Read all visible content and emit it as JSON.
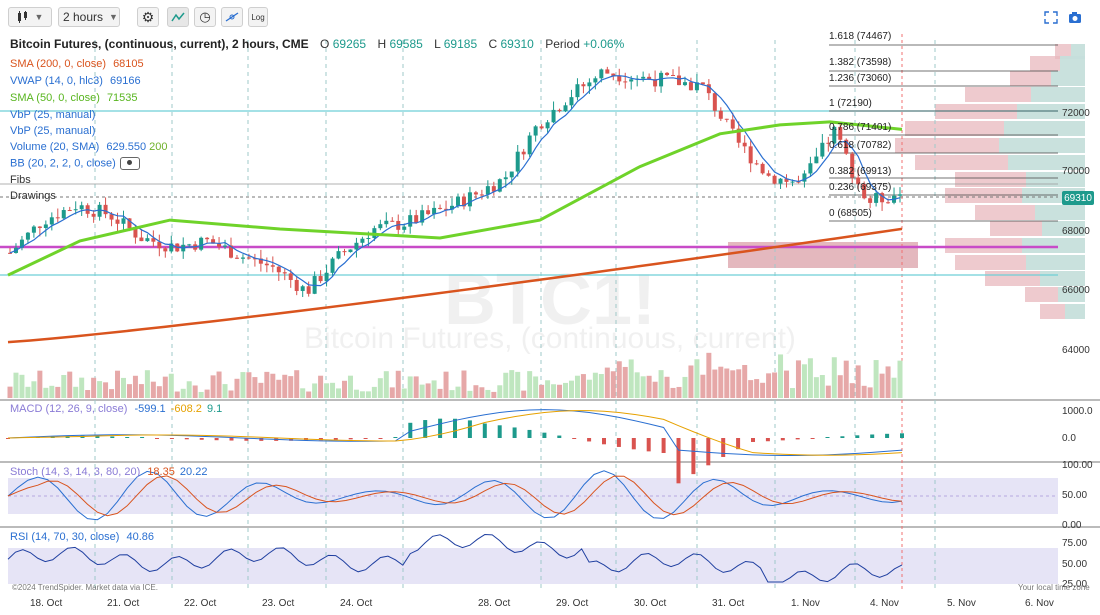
{
  "toolbar": {
    "chart_style_icon": "candle-icon",
    "timeframe": "2 hours",
    "settings_icon": "gear-icon",
    "indicator_icon": "indicator-icon",
    "replay_icon": "clock-icon",
    "drawing_icon": "drawing-icon",
    "log_label": "Log",
    "fullscreen_icon": "fullscreen-icon",
    "snapshot_icon": "camera-icon"
  },
  "header": {
    "title": "Bitcoin Futures, (continuous, current), 2 hours, CME",
    "o_label": "O",
    "o": "69265",
    "h_label": "H",
    "h": "69585",
    "l_label": "L",
    "l": "69185",
    "c_label": "C",
    "c": "69310",
    "period_label": "Period",
    "period": "+0.06%"
  },
  "legends": {
    "sma200": {
      "label": "SMA (200, 0, close)",
      "value": "68105",
      "color": "#d9541e"
    },
    "vwap": {
      "label": "VWAP (14, 0, hlc3)",
      "value": "69166",
      "color": "#2a6fd1"
    },
    "sma50": {
      "label": "SMA (50, 0, close)",
      "value": "71535",
      "color": "#6fd32a"
    },
    "vbp1": {
      "label": "VbP (25, manual)"
    },
    "vbp2": {
      "label": "VbP (25, manual)"
    },
    "volume": {
      "label": "Volume (20, SMA)",
      "value": "629.550",
      "value2": "200",
      "color": "#2a6fd1"
    },
    "bb": {
      "label": "BB (20, 2, 2, 0, close)",
      "icon": "eye-icon"
    },
    "fibs": {
      "label": "Fibs"
    },
    "drawings": {
      "label": "Drawings"
    }
  },
  "fib_levels": [
    {
      "label": "1.618 (74467)"
    },
    {
      "label": "1.382 (73598)"
    },
    {
      "label": "1.236 (73060)"
    },
    {
      "label": "1 (72190)"
    },
    {
      "label": "0.786 (71401)"
    },
    {
      "label": "0.618 (70782)"
    },
    {
      "label": "0.382 (69913)"
    },
    {
      "label": "0.236 (69375)"
    },
    {
      "label": "0 (68505)"
    }
  ],
  "price_axis": [
    "72000",
    "70000",
    "68000",
    "66000",
    "64000"
  ],
  "current_price": "69310",
  "watermark": {
    "symbol": "BTC1!",
    "name": "Bitcoin Futures, (continuous, current)"
  },
  "macd": {
    "label": "MACD (12, 26, 9, close)",
    "v1": "-599.1",
    "v2": "-608.2",
    "v3": "9.1",
    "ticks": [
      "1000.0",
      "0.0"
    ]
  },
  "stoch": {
    "label": "Stoch (14, 3, 14, 3, 80, 20)",
    "v1": "18.35",
    "v2": "20.22",
    "ticks": [
      "100.00",
      "50.00",
      "0.00"
    ]
  },
  "rsi": {
    "label": "RSI (14, 70, 30, close)",
    "v1": "40.86",
    "ticks": [
      "75.00",
      "50.00",
      "25.00"
    ]
  },
  "x_axis": [
    "18. Oct",
    "21. Oct",
    "22. Oct",
    "23. Oct",
    "24. Oct",
    "28. Oct",
    "29. Oct",
    "30. Oct",
    "31. Oct",
    "1. Nov",
    "4. Nov",
    "5. Nov",
    "6. Nov"
  ],
  "footer": {
    "copyright": "©2024 TrendSpider. Market data via ICE.",
    "timezone": "Your local time zone"
  },
  "chart_data": {
    "type": "candlestick",
    "title": "Bitcoin Futures, (continuous, current), 2 hours, CME",
    "x": [
      "18. Oct",
      "21. Oct",
      "22. Oct",
      "23. Oct",
      "24. Oct",
      "28. Oct",
      "29. Oct",
      "30. Oct",
      "31. Oct",
      "1. Nov",
      "4. Nov"
    ],
    "y_range": [
      63000,
      74800
    ],
    "close_path": [
      67300,
      68400,
      68900,
      68600,
      67800,
      67500,
      67700,
      67200,
      66800,
      66000,
      67200,
      68100,
      68300,
      68700,
      69200,
      69800,
      71600,
      72600,
      73400,
      73200,
      73100,
      72900,
      71100,
      69900,
      69600,
      71400,
      69000,
      69310
    ],
    "sma50": {
      "start": 66500,
      "end": 71535
    },
    "sma200": {
      "start": 64300,
      "end": 68105
    },
    "colors": {
      "up": "#1d9a8c",
      "down": "#d9534f",
      "sma50": "#6fd32a",
      "sma200": "#d9541e",
      "vwap": "#2a6fd1",
      "bb_line": "#c84bc8"
    }
  }
}
